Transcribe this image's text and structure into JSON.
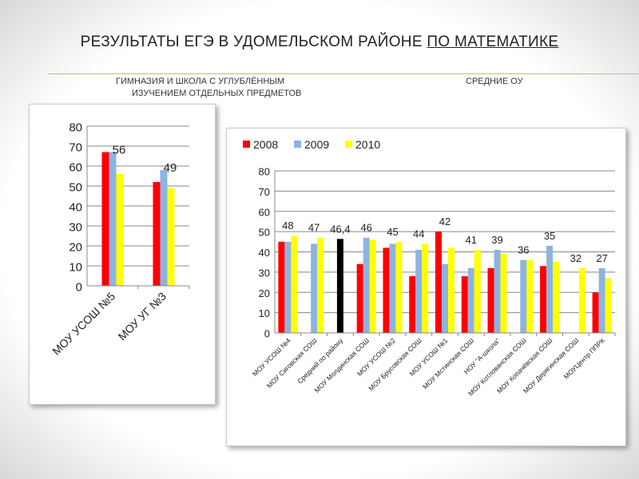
{
  "title": {
    "main": "РЕЗУЛЬТАТЫ ЕГЭ  В  УДОМЕЛЬСКОМ РАЙОНЕ ",
    "underlined": "ПО МАТЕМАТИКЕ"
  },
  "subtitles": {
    "left_line1": "ГИМНАЗИЯ И ШКОЛА С УГЛУБЛЁННЫМ",
    "left_line2": "ИЗУЧЕНИЕМ ОТДЕЛЬНЫХ ПРЕДМЕТОВ",
    "right": "СРЕДНИЕ ОУ"
  },
  "colors": {
    "2008": "#ff0000",
    "2009": "#8db3e2",
    "2010": "#ffff00",
    "average": "#000000"
  },
  "chart_data": [
    {
      "type": "bar",
      "title": "",
      "categories": [
        "МОУ УСОШ №5",
        "МОУ УГ №3"
      ],
      "series": [
        {
          "name": "2008",
          "values": [
            67,
            52
          ]
        },
        {
          "name": "2009",
          "values": [
            67,
            58
          ]
        },
        {
          "name": "2010",
          "values": [
            56,
            49
          ]
        }
      ],
      "data_labels": [
        "56",
        "49"
      ],
      "yticks": [
        "0",
        "10",
        "20",
        "30",
        "40",
        "50",
        "60",
        "70",
        "80"
      ],
      "ylim": [
        0,
        80
      ],
      "grid": true,
      "legend": "none"
    },
    {
      "type": "bar",
      "title": "",
      "categories": [
        "МОУ УСОШ №4",
        "МОУ Сиговская СОШ",
        "Средний по району",
        "МОУ Молдинская СОШ",
        "МОУ УСОШ №2",
        "МОУ Брусовская СОШ",
        "МОУ УСОШ №1",
        "МОУ Мстинская СОШ",
        "НОУ \"А-школа\"",
        "МОУ Котлованская СОШ",
        "МОУ Копачёвская СОШ",
        "МОУ Дерягинская СОШ",
        "МОУЦентр ППРК"
      ],
      "series": [
        {
          "name": "2008",
          "values": [
            45,
            null,
            null,
            34,
            42,
            28,
            50,
            28,
            32,
            null,
            33,
            null,
            20
          ]
        },
        {
          "name": "2009",
          "values": [
            45,
            44,
            null,
            47,
            44,
            41,
            34,
            32,
            41,
            36,
            43,
            null,
            32
          ]
        },
        {
          "name": "2010",
          "values": [
            48,
            47,
            null,
            46,
            45,
            44,
            42,
            41,
            39,
            36,
            35,
            32,
            27
          ]
        },
        {
          "name": "Средний",
          "values": [
            null,
            null,
            46.4,
            null,
            null,
            null,
            null,
            null,
            null,
            null,
            null,
            null,
            null
          ]
        }
      ],
      "data_labels": [
        "48",
        "47",
        "46,4",
        "46",
        "45",
        "44",
        "42",
        "41",
        "39",
        "36",
        "35",
        "32",
        "27"
      ],
      "yticks": [
        "0",
        "10",
        "20",
        "30",
        "40",
        "50",
        "60",
        "70",
        "80"
      ],
      "ylim": [
        0,
        80
      ],
      "grid": true,
      "legend": "top-left",
      "legend_entries": [
        "2008",
        "2009",
        "2010"
      ]
    }
  ]
}
